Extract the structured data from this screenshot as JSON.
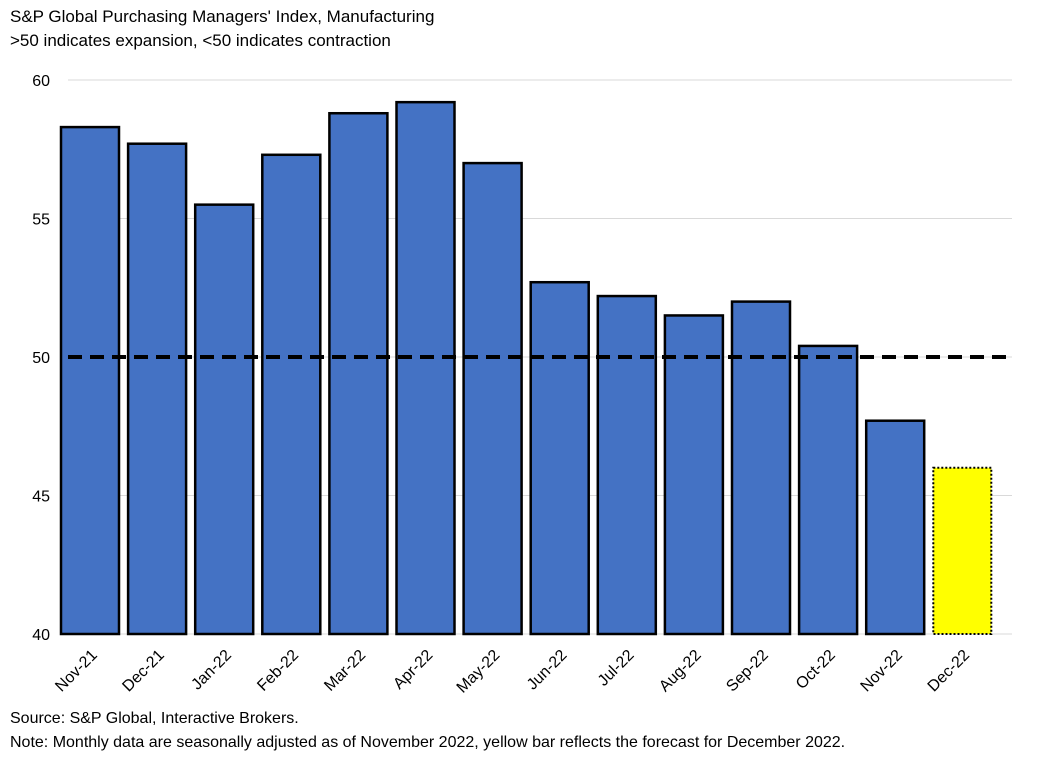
{
  "chart_data": {
    "type": "bar",
    "title": "S&P Global Purchasing Managers' Index, Manufacturing",
    "subtitle": ">50 indicates expansion, <50 indicates contraction",
    "categories": [
      "Nov-21",
      "Dec-21",
      "Jan-22",
      "Feb-22",
      "Mar-22",
      "Apr-22",
      "May-22",
      "Jun-22",
      "Jul-22",
      "Aug-22",
      "Sep-22",
      "Oct-22",
      "Nov-22",
      "Dec-22"
    ],
    "values": [
      58.3,
      57.7,
      55.5,
      57.3,
      58.8,
      59.2,
      57.0,
      52.7,
      52.2,
      51.5,
      52.0,
      50.4,
      47.7,
      46.0
    ],
    "forecast_index": 13,
    "ylim": [
      40,
      60
    ],
    "yticks": [
      40,
      45,
      50,
      55,
      60
    ],
    "reference_line": 50,
    "grid": true,
    "xlabel": "",
    "ylabel": "",
    "colors": {
      "bar": "#4472C4",
      "forecast": "#FFFF00",
      "outline": "#000000",
      "grid": "#D9D9D9",
      "reference": "#000000"
    }
  },
  "source": "Source: S&P Global, Interactive Brokers.",
  "note": "Note: Monthly data are seasonally adjusted as of November 2022, yellow bar reflects the forecast for December 2022."
}
